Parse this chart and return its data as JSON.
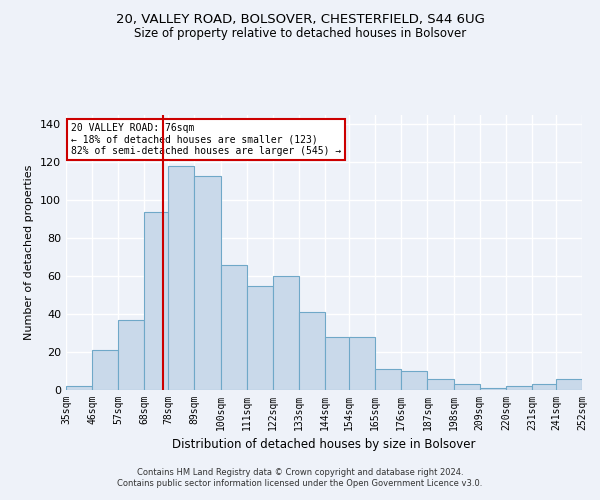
{
  "title1": "20, VALLEY ROAD, BOLSOVER, CHESTERFIELD, S44 6UG",
  "title2": "Size of property relative to detached houses in Bolsover",
  "xlabel": "Distribution of detached houses by size in Bolsover",
  "ylabel": "Number of detached properties",
  "footer1": "Contains HM Land Registry data © Crown copyright and database right 2024.",
  "footer2": "Contains public sector information licensed under the Open Government Licence v3.0.",
  "annotation_line1": "20 VALLEY ROAD: 76sqm",
  "annotation_line2": "← 18% of detached houses are smaller (123)",
  "annotation_line3": "82% of semi-detached houses are larger (545) →",
  "property_size": 76,
  "bar_left_edges": [
    35,
    46,
    57,
    68,
    78,
    89,
    100,
    111,
    122,
    133,
    144,
    154,
    165,
    176,
    187,
    198,
    209,
    220,
    231,
    241
  ],
  "bar_heights": [
    2,
    21,
    37,
    94,
    118,
    113,
    66,
    55,
    60,
    41,
    28,
    28,
    11,
    10,
    6,
    3,
    1,
    2,
    3,
    6
  ],
  "bin_width": 11,
  "bar_color": "#c9d9ea",
  "bar_edge_color": "#6fa8c8",
  "marker_color": "#cc0000",
  "tick_labels": [
    "35sqm",
    "46sqm",
    "57sqm",
    "68sqm",
    "78sqm",
    "89sqm",
    "100sqm",
    "111sqm",
    "122sqm",
    "133sqm",
    "144sqm",
    "154sqm",
    "165sqm",
    "176sqm",
    "187sqm",
    "198sqm",
    "209sqm",
    "220sqm",
    "231sqm",
    "241sqm",
    "252sqm"
  ],
  "ylim": [
    0,
    145
  ],
  "yticks": [
    0,
    20,
    40,
    60,
    80,
    100,
    120,
    140
  ],
  "background_color": "#eef2f9",
  "grid_color": "#ffffff",
  "annotation_box_color": "#ffffff",
  "annotation_box_edge": "#cc0000"
}
